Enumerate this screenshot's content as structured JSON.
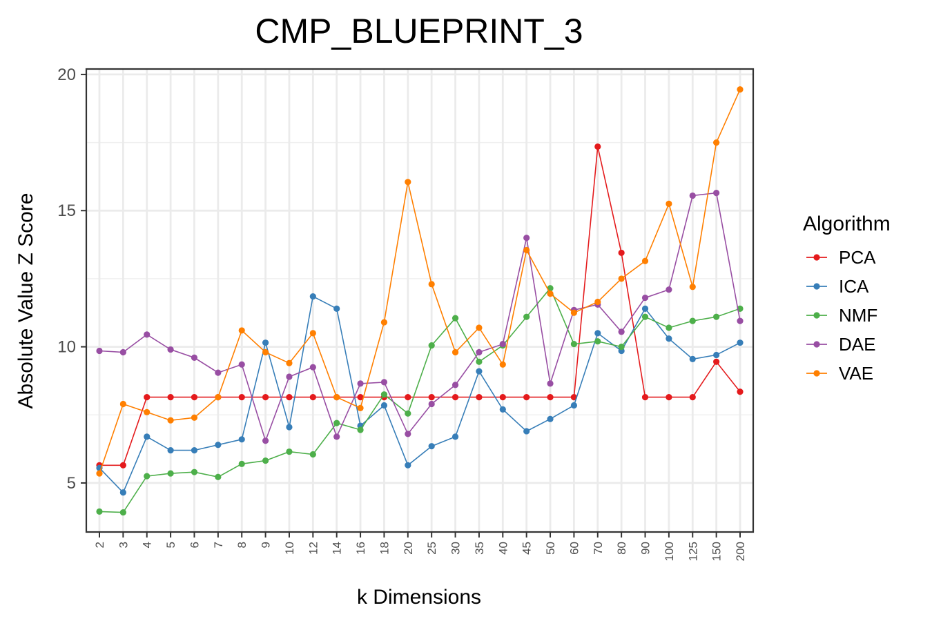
{
  "chart_data": {
    "type": "line",
    "title": "CMP_BLUEPRINT_3",
    "xlabel": "k Dimensions",
    "ylabel": "Absolute Value Z Score",
    "ylim": [
      3.2,
      20.2
    ],
    "yticks": [
      5,
      10,
      15,
      20
    ],
    "grid": true,
    "legend": {
      "title": "Algorithm",
      "position": "right"
    },
    "categories": [
      "2",
      "3",
      "4",
      "5",
      "6",
      "7",
      "8",
      "9",
      "10",
      "12",
      "14",
      "16",
      "18",
      "20",
      "25",
      "30",
      "35",
      "40",
      "45",
      "50",
      "60",
      "70",
      "80",
      "90",
      "100",
      "125",
      "150",
      "200"
    ],
    "series": [
      {
        "name": "PCA",
        "color": "#e41a1c",
        "values": [
          5.65,
          5.65,
          8.15,
          8.15,
          8.15,
          8.15,
          8.15,
          8.15,
          8.15,
          8.15,
          8.15,
          8.15,
          8.15,
          8.15,
          8.15,
          8.15,
          8.15,
          8.15,
          8.15,
          8.15,
          8.15,
          17.35,
          13.45,
          8.15,
          8.15,
          8.15,
          9.45,
          8.35
        ]
      },
      {
        "name": "ICA",
        "color": "#377eb8",
        "values": [
          5.55,
          4.65,
          6.7,
          6.2,
          6.2,
          6.4,
          6.6,
          10.15,
          7.05,
          11.85,
          11.4,
          7.1,
          7.85,
          5.65,
          6.35,
          6.7,
          9.1,
          7.7,
          6.9,
          7.35,
          7.85,
          10.5,
          9.85,
          11.4,
          10.3,
          9.55,
          9.7,
          10.15
        ]
      },
      {
        "name": "NMF",
        "color": "#4daf4a",
        "values": [
          3.95,
          3.92,
          5.25,
          5.35,
          5.4,
          5.22,
          5.7,
          5.82,
          6.15,
          6.05,
          7.2,
          6.95,
          8.25,
          7.55,
          10.05,
          11.05,
          9.45,
          10.05,
          11.1,
          12.15,
          10.1,
          10.2,
          10.0,
          11.1,
          10.7,
          10.95,
          11.1,
          11.4
        ]
      },
      {
        "name": "DAE",
        "color": "#984ea3",
        "values": [
          9.85,
          9.8,
          10.45,
          9.9,
          9.6,
          9.05,
          9.35,
          6.55,
          8.9,
          9.25,
          6.7,
          8.65,
          8.7,
          6.8,
          7.9,
          8.6,
          9.8,
          10.1,
          14.0,
          8.65,
          11.35,
          11.55,
          10.55,
          11.8,
          12.1,
          15.55,
          15.65,
          10.95
        ]
      },
      {
        "name": "VAE",
        "color": "#ff7f00",
        "values": [
          5.35,
          7.9,
          7.6,
          7.3,
          7.4,
          8.15,
          10.6,
          9.8,
          9.4,
          10.5,
          8.15,
          7.75,
          10.9,
          16.05,
          12.3,
          9.8,
          10.7,
          9.35,
          13.55,
          11.95,
          11.25,
          11.65,
          12.5,
          13.15,
          15.25,
          12.2,
          17.5,
          19.45
        ]
      }
    ]
  }
}
